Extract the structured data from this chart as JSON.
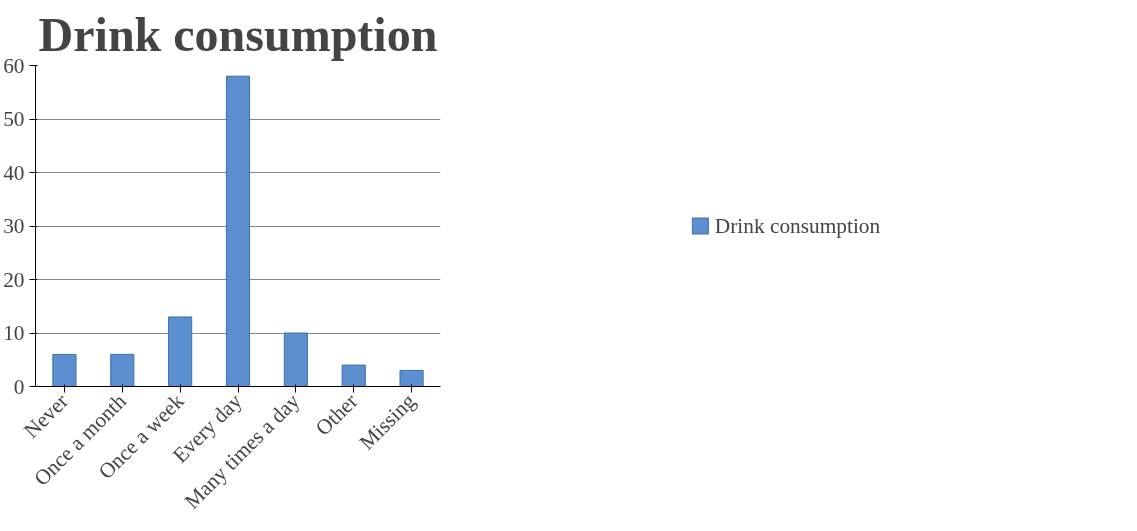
{
  "chart_data": {
    "type": "bar",
    "title": "Drink consumption",
    "categories": [
      "Never",
      "Once a month",
      "Once a week",
      "Every day",
      "Many times a day",
      "Other",
      "Missing"
    ],
    "series": [
      {
        "name": "Drink consumption",
        "color": "#5b8fcf",
        "values": [
          6,
          6,
          13,
          58,
          10,
          4,
          3
        ]
      }
    ],
    "ylim": [
      0,
      60
    ],
    "yticks": [
      0,
      10,
      20,
      30,
      40,
      50,
      60
    ],
    "grid": "y",
    "legend": "right"
  }
}
